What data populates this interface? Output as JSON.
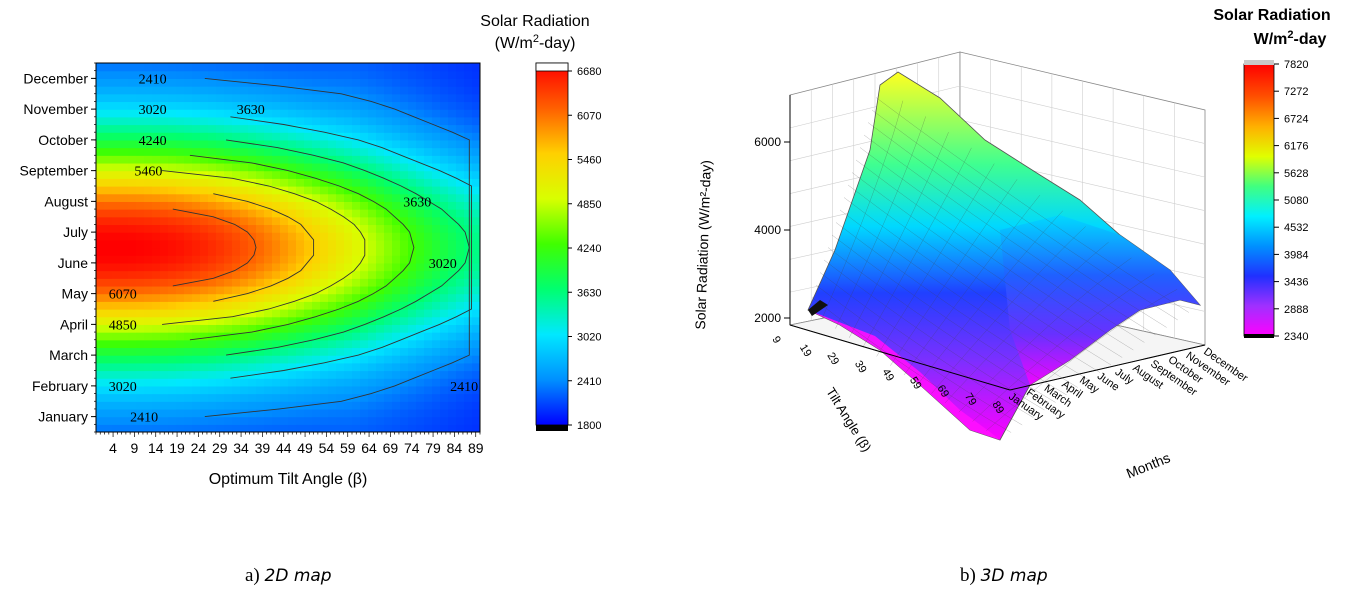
{
  "captions": {
    "a_prefix": "a) ",
    "a_text": "2D map",
    "b_prefix": "b) ",
    "b_text": "3D map"
  },
  "chart_data": [
    {
      "type": "heatmap",
      "title": "",
      "xlabel": "Optimum Tilt Angle (β)",
      "ylabel": "",
      "x_ticks": [
        4,
        9,
        14,
        19,
        24,
        29,
        34,
        39,
        44,
        49,
        54,
        59,
        64,
        69,
        74,
        79,
        84,
        89
      ],
      "xlim": [
        0,
        90
      ],
      "y_categories": [
        "January",
        "February",
        "March",
        "April",
        "May",
        "June",
        "July",
        "August",
        "September",
        "October",
        "November",
        "December"
      ],
      "colorbar": {
        "title_line1": "Solar Radiation",
        "title_line2_prefix": "(W/m",
        "title_line2_sup": "2",
        "title_line2_suffix": "-day)",
        "ticks": [
          1800,
          2410,
          3020,
          3630,
          4240,
          4850,
          5460,
          6070,
          6680
        ],
        "range": [
          1800,
          6680
        ],
        "colors": [
          "#0000ff",
          "#0090ff",
          "#00e8ff",
          "#00ff70",
          "#40ff00",
          "#d8ff00",
          "#ffd000",
          "#ff6000",
          "#ff0000"
        ]
      },
      "contour_labels": [
        {
          "month": "December",
          "angle": 10,
          "text": "2410"
        },
        {
          "month": "November",
          "angle": 10,
          "text": "3020"
        },
        {
          "month": "November",
          "angle": 33,
          "text": "3630"
        },
        {
          "month": "October",
          "angle": 10,
          "text": "4240"
        },
        {
          "month": "September",
          "angle": 9,
          "text": "5460"
        },
        {
          "month": "August",
          "angle": 72,
          "text": "3630"
        },
        {
          "month": "June",
          "angle": 78,
          "text": "3020"
        },
        {
          "month": "May",
          "angle": 3,
          "text": "6070"
        },
        {
          "month": "April",
          "angle": 3,
          "text": "4850"
        },
        {
          "month": "February",
          "angle": 3,
          "text": "3020"
        },
        {
          "month": "January",
          "angle": 8,
          "text": "2410"
        },
        {
          "month": "February",
          "angle": 83,
          "text": "2410"
        }
      ]
    },
    {
      "type": "surface",
      "title": "",
      "zlabel": "Solar Radiation (W/m²-day)",
      "z_ticks": [
        2000,
        4000,
        6000
      ],
      "x_label": "Tilt Angle (β)",
      "x_ticks": [
        9,
        19,
        29,
        39,
        49,
        59,
        69,
        79,
        89
      ],
      "y_label": "Months",
      "y_categories": [
        "January",
        "February",
        "March",
        "April",
        "May",
        "June",
        "July",
        "August",
        "September",
        "October",
        "November",
        "December"
      ],
      "colorbar": {
        "title_line1": "Solar Radiation",
        "title_line2_prefix": "W/m",
        "title_line2_sup": "2",
        "title_line2_suffix": "-day",
        "ticks": [
          2340,
          2888,
          3436,
          3984,
          4532,
          5080,
          5628,
          6176,
          6724,
          7272,
          7820
        ],
        "range": [
          2340,
          7820
        ],
        "colors": [
          "#ff00ff",
          "#a030ff",
          "#2030ff",
          "#0090ff",
          "#00f0ff",
          "#40ff80",
          "#e0ff00",
          "#ffb000",
          "#ff5000",
          "#ff0000"
        ]
      }
    }
  ]
}
